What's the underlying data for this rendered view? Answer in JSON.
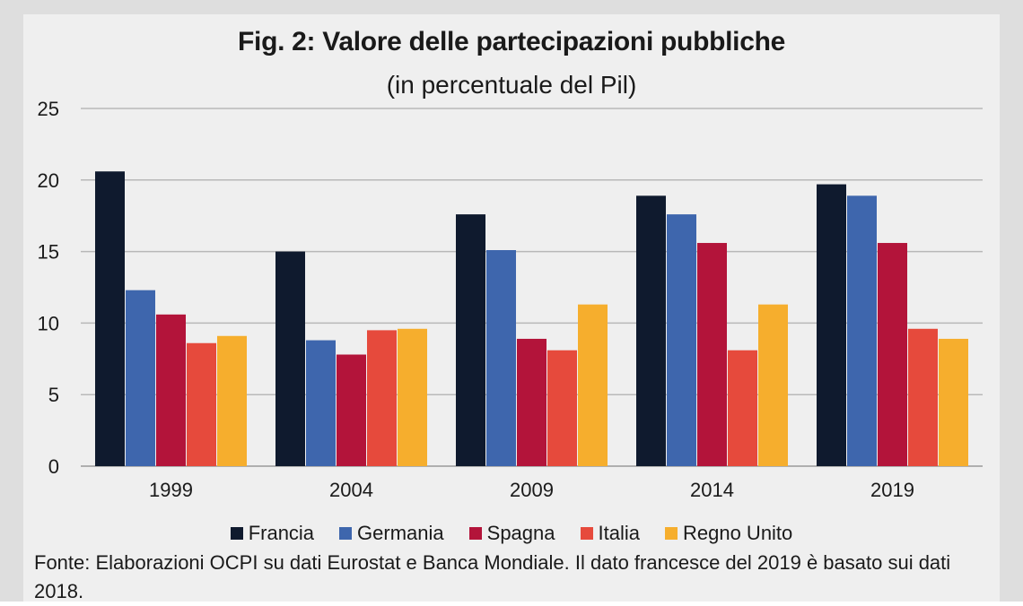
{
  "chart_data": {
    "type": "bar",
    "title": "Fig. 2: Valore delle partecipazioni pubbliche",
    "subtitle": "(in percentuale del Pil)",
    "categories": [
      "1999",
      "2004",
      "2009",
      "2014",
      "2019"
    ],
    "series": [
      {
        "name": "Francia",
        "color": "#0f1a2e",
        "values": [
          20.6,
          15.0,
          17.6,
          18.9,
          19.7
        ]
      },
      {
        "name": "Germania",
        "color": "#3e66ad",
        "values": [
          12.3,
          8.8,
          15.1,
          17.6,
          18.9
        ]
      },
      {
        "name": "Spagna",
        "color": "#b3143a",
        "values": [
          10.6,
          7.8,
          8.9,
          15.6,
          15.6
        ]
      },
      {
        "name": "Italia",
        "color": "#e64a3c",
        "values": [
          8.6,
          9.5,
          8.1,
          8.1,
          9.6
        ]
      },
      {
        "name": "Regno Unito",
        "color": "#f6ae2d",
        "values": [
          9.1,
          9.6,
          11.3,
          11.3,
          8.9
        ]
      }
    ],
    "yticks": [
      "0",
      "5",
      "10",
      "15",
      "20",
      "25"
    ],
    "ylim": [
      0,
      25
    ],
    "xlabel": "",
    "ylabel": "",
    "grid": true,
    "legend_position": "bottom"
  },
  "source_note": "Fonte: Elaborazioni OCPI su dati Eurostat e Banca Mondiale. Il dato francesce del 2019 è basato sui dati 2018."
}
